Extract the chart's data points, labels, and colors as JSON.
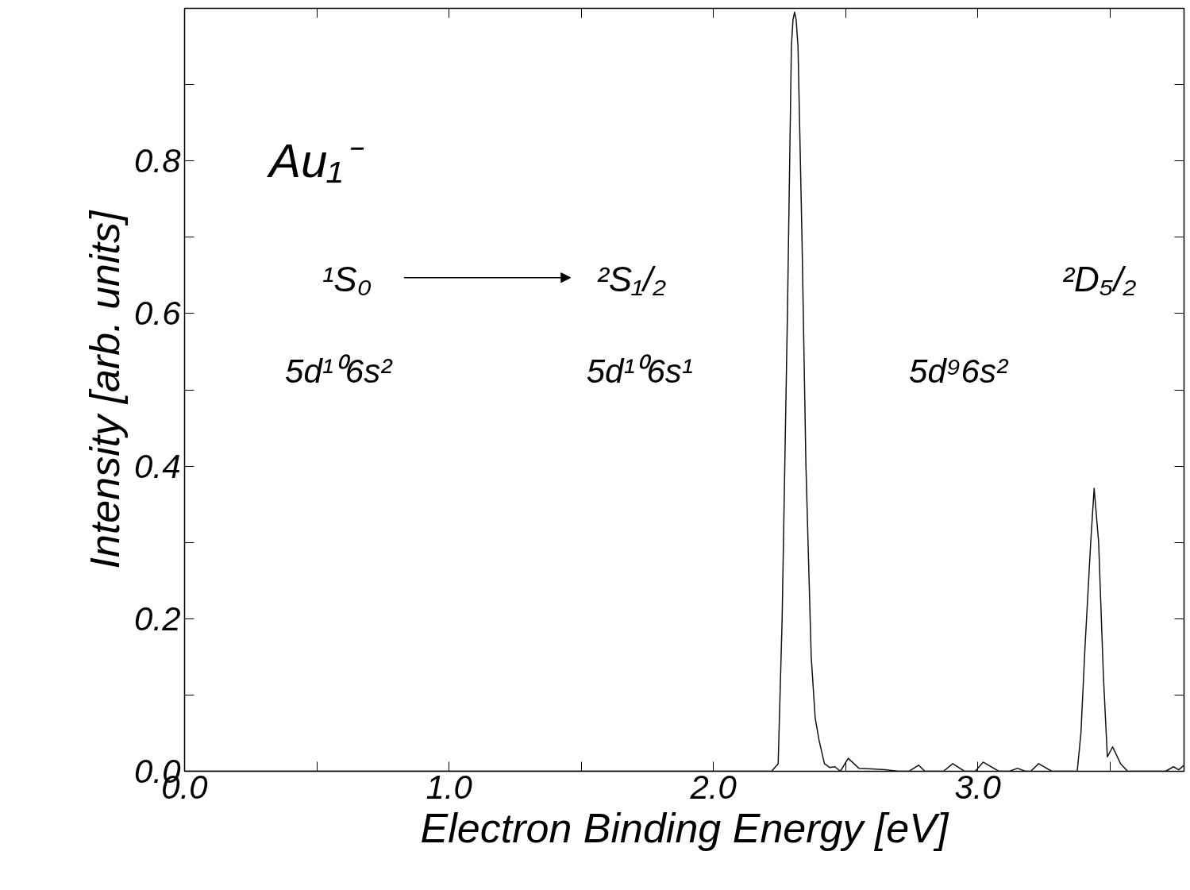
{
  "chart_data": {
    "type": "line",
    "xlabel": "Electron Binding Energy [eV]",
    "ylabel": "Intensity [arb. units]",
    "annotations": [
      "Au₁⁻",
      "¹S₀",
      "²S₁/₂",
      "²D₅/₂",
      "5d¹⁰6s²",
      "5d¹⁰6s¹",
      "5d⁹6s²"
    ],
    "xlim": [
      0,
      3.78
    ],
    "ylim": [
      0,
      1.0
    ],
    "xticks": [
      {
        "value": 0,
        "label": "0.0"
      },
      {
        "value": 0.5,
        "label": null
      },
      {
        "value": 1,
        "label": "1.0"
      },
      {
        "value": 1.5,
        "label": null
      },
      {
        "value": 2,
        "label": "2.0"
      },
      {
        "value": 2.5,
        "label": null
      },
      {
        "value": 3,
        "label": "3.0"
      },
      {
        "value": 3.5,
        "label": null
      }
    ],
    "yticks": [
      {
        "value": 0,
        "label": "0.0"
      },
      {
        "value": 0.1,
        "label": null
      },
      {
        "value": 0.2,
        "label": "0.2"
      },
      {
        "value": 0.3,
        "label": null
      },
      {
        "value": 0.4,
        "label": "0.4"
      },
      {
        "value": 0.5,
        "label": null
      },
      {
        "value": 0.6,
        "label": "0.6"
      },
      {
        "value": 0.7,
        "label": null
      },
      {
        "value": 0.8,
        "label": "0.8"
      },
      {
        "value": 0.9,
        "label": null
      }
    ],
    "grid": false,
    "marker": "none",
    "line_style": "solid",
    "series": [
      {
        "color": "#111111",
        "x": [
          0.0,
          2.22,
          2.245,
          2.26,
          2.28,
          2.295,
          2.301,
          2.307,
          2.313,
          2.32,
          2.335,
          2.35,
          2.37,
          2.385,
          2.4,
          2.42,
          2.44,
          2.46,
          2.48,
          2.51,
          2.55,
          2.6,
          2.65,
          2.7,
          2.74,
          2.776,
          2.8,
          2.87,
          2.905,
          2.95,
          2.99,
          3.02,
          3.08,
          3.12,
          3.15,
          3.18,
          3.2,
          3.23,
          3.28,
          3.376,
          3.39,
          3.405,
          3.427,
          3.44,
          3.457,
          3.475,
          3.49,
          3.51,
          3.54,
          3.567,
          3.71,
          3.74,
          3.76,
          3.78
        ],
        "values": [
          0.0,
          0.0,
          0.01,
          0.2,
          0.6,
          0.95,
          0.985,
          0.995,
          0.985,
          0.95,
          0.7,
          0.4,
          0.15,
          0.07,
          0.04,
          0.01,
          0.005,
          0.006,
          0.0,
          0.017,
          0.004,
          0.003,
          0.002,
          0.0,
          0.0,
          0.008,
          0.0,
          0.0,
          0.01,
          0.0,
          0.0,
          0.012,
          0.0,
          0.0,
          0.004,
          0.0,
          0.0,
          0.01,
          0.0,
          0.0,
          0.05,
          0.16,
          0.3,
          0.371,
          0.3,
          0.125,
          0.019,
          0.032,
          0.01,
          0.0,
          0.0,
          0.006,
          0.002,
          0.008
        ]
      }
    ]
  }
}
